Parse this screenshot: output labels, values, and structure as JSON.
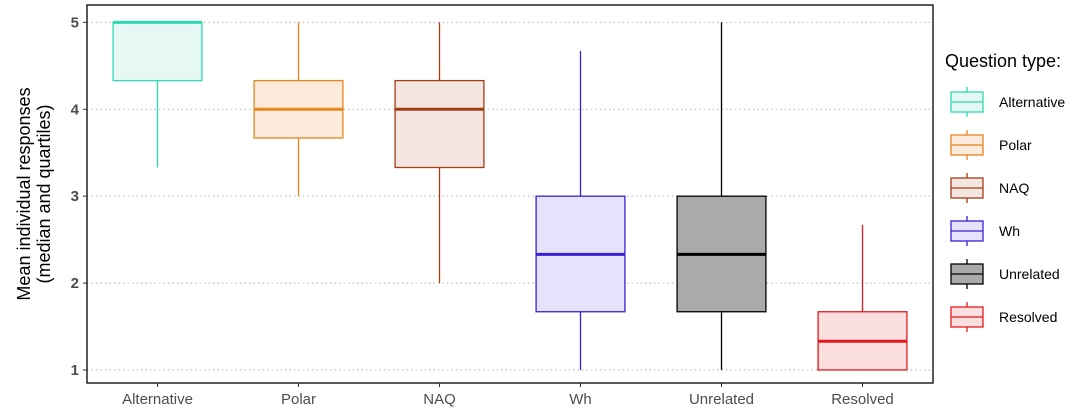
{
  "chart_data": {
    "type": "boxplot",
    "ylabel_line1": "Mean individual responses",
    "ylabel_line2": "(median and quartiles)",
    "xlabel": "",
    "ylim": [
      0.85,
      5.2
    ],
    "yticks": [
      "1",
      "2",
      "3",
      "4",
      "5"
    ],
    "grid": "horizontal dotted",
    "legend_title": "Question type:",
    "legend_position": "right",
    "categories": [
      "Alternative",
      "Polar",
      "NAQ",
      "Wh",
      "Unrelated",
      "Resolved"
    ],
    "boxes": [
      {
        "category": "Alternative",
        "lower_whisker": 3.33,
        "q1": 4.33,
        "median": 5.0,
        "q3": 5.0,
        "upper_whisker": 5.0,
        "color": "#2ed9b2",
        "fill": "#e6f8f3"
      },
      {
        "category": "Polar",
        "lower_whisker": 3.0,
        "q1": 3.67,
        "median": 4.0,
        "q3": 4.33,
        "upper_whisker": 5.0,
        "color": "#e8841c",
        "fill": "#fcebdd"
      },
      {
        "category": "NAQ",
        "lower_whisker": 2.0,
        "q1": 3.33,
        "median": 4.0,
        "q3": 4.33,
        "upper_whisker": 5.0,
        "color": "#a33d14",
        "fill": "#f3e5df"
      },
      {
        "category": "Wh",
        "lower_whisker": 1.0,
        "q1": 1.67,
        "median": 2.33,
        "q3": 3.0,
        "upper_whisker": 4.67,
        "color": "#3a1fd6",
        "fill": "#e5e2fb"
      },
      {
        "category": "Unrelated",
        "lower_whisker": 1.0,
        "q1": 1.67,
        "median": 2.33,
        "q3": 3.0,
        "upper_whisker": 5.0,
        "color": "#000000",
        "fill": "#aaaaaa"
      },
      {
        "category": "Resolved",
        "lower_whisker": 1.0,
        "q1": 1.0,
        "median": 1.33,
        "q3": 1.67,
        "upper_whisker": 2.67,
        "color": "#e41a1c",
        "fill": "#fbdede"
      }
    ]
  }
}
